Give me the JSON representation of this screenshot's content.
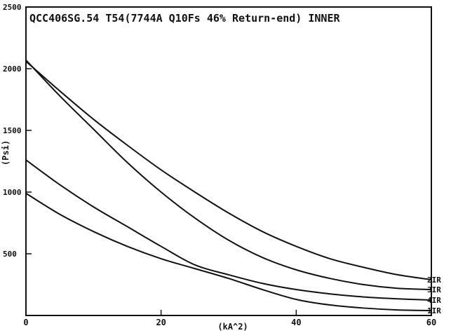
{
  "chart_data": {
    "type": "line",
    "title": "QCC406SG.54 T54(7744A Q10Fs 46% Return-end) INNER",
    "xlabel": "(kA^2)",
    "ylabel": "(Psi)",
    "xlim": [
      0,
      60
    ],
    "ylim": [
      0,
      2500
    ],
    "x_ticks": [
      0,
      20,
      40,
      60
    ],
    "x_tick_labels": [
      "0",
      "20",
      "40",
      "60"
    ],
    "y_ticks": [
      500,
      1000,
      1500,
      2000,
      2500
    ],
    "y_tick_labels": [
      "500",
      "1000",
      "1500",
      "2000",
      "2500"
    ],
    "grid": false,
    "legend": "series labels at right end of lines",
    "series": [
      {
        "name": "2IR",
        "x": [
          0,
          5,
          10,
          15,
          20,
          25,
          30,
          35,
          40,
          45,
          50,
          55,
          60
        ],
        "y": [
          2060,
          1820,
          1590,
          1380,
          1180,
          1000,
          830,
          680,
          560,
          460,
          390,
          330,
          290
        ]
      },
      {
        "name": "3IR",
        "x": [
          0,
          5,
          10,
          15,
          20,
          25,
          30,
          35,
          40,
          45,
          50,
          55,
          60
        ],
        "y": [
          2070,
          1780,
          1510,
          1240,
          1000,
          790,
          610,
          470,
          370,
          300,
          250,
          220,
          210
        ]
      },
      {
        "name": "4IR",
        "x": [
          0,
          5,
          10,
          15,
          20,
          25,
          30,
          35,
          40,
          45,
          50,
          55,
          60
        ],
        "y": [
          1260,
          1060,
          880,
          720,
          560,
          410,
          330,
          260,
          210,
          175,
          150,
          135,
          125
        ]
      },
      {
        "name": "1IR",
        "x": [
          0,
          5,
          10,
          15,
          20,
          25,
          30,
          35,
          40,
          45,
          50,
          55,
          60
        ],
        "y": [
          990,
          820,
          680,
          560,
          460,
          380,
          300,
          210,
          130,
          85,
          60,
          45,
          40
        ]
      }
    ]
  }
}
